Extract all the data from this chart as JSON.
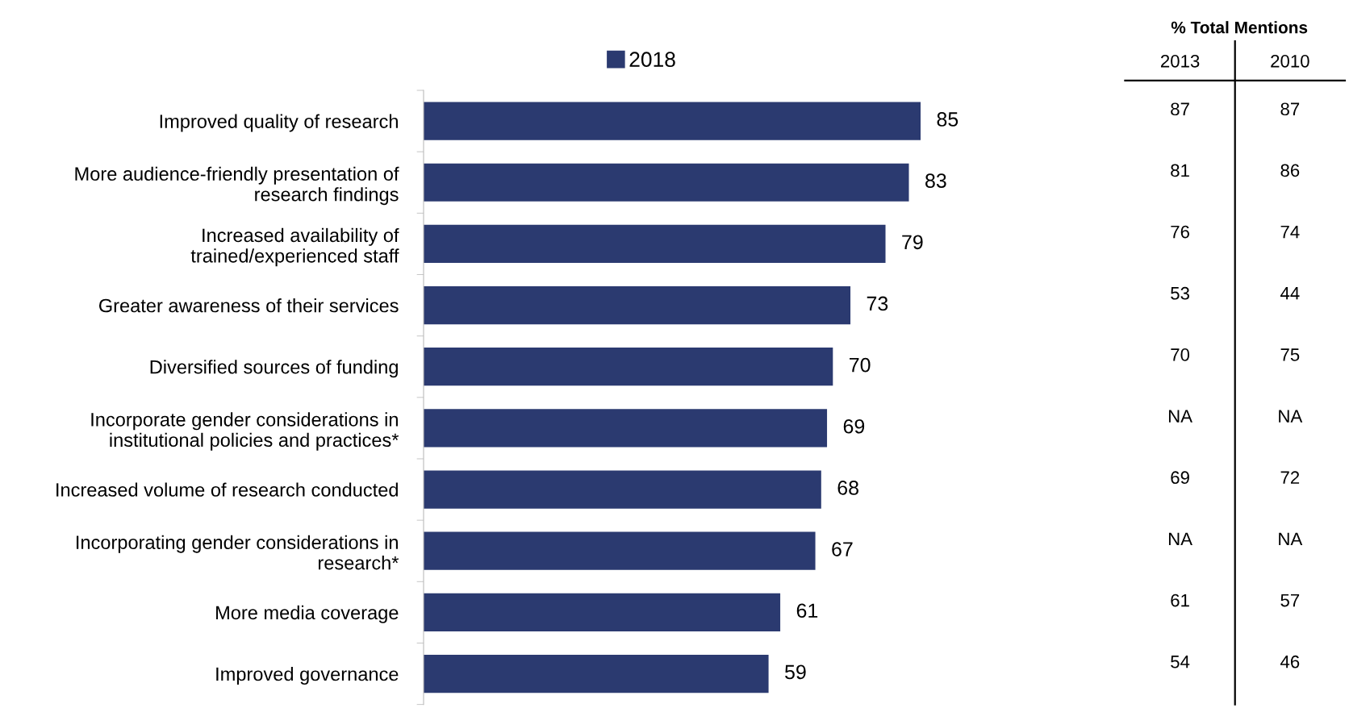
{
  "chart_data": [
    {
      "type": "bar",
      "orientation": "horizontal",
      "legend": "top",
      "data_labels": true,
      "categories": [
        "Improved quality of research",
        "More audience-friendly presentation of\nresearch findings",
        "Increased availability of\ntrained/experienced staff",
        "Greater awareness of their services",
        "Diversified sources of funding",
        "Incorporate gender considerations in\ninstitutional policies and practices*",
        "Increased volume of research conducted",
        "Incorporating gender considerations in\nresearch*",
        "More media coverage",
        "Improved governance"
      ],
      "series": [
        {
          "name": "2018",
          "color": "#2b3a70",
          "values": [
            85,
            83,
            79,
            73,
            70,
            69,
            68,
            67,
            61,
            59
          ]
        }
      ]
    },
    {
      "type": "other",
      "title": "% Total Mentions",
      "categories": [
        "2013",
        "2010"
      ],
      "annotations": [
        "87",
        "87",
        "81",
        "86",
        "76",
        "74",
        "53",
        "44",
        "70",
        "75",
        "NA",
        "NA",
        "69",
        "72",
        "NA",
        "NA",
        "61",
        "57",
        "54",
        "46"
      ]
    }
  ]
}
